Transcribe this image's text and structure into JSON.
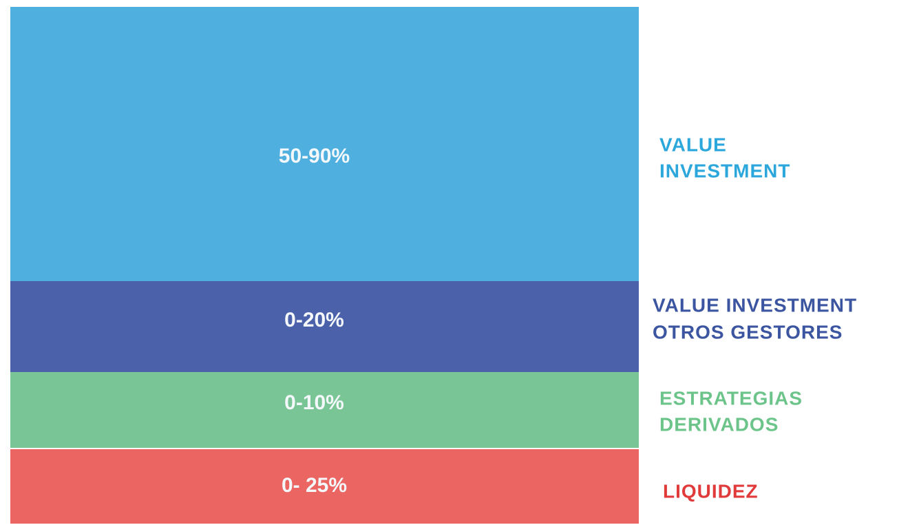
{
  "blocks": [
    {
      "range": "50-90%",
      "label_lines": [
        "VALUE",
        "INVESTMENT"
      ],
      "color": "#4fb0e0",
      "label_color": "#2ba7dc"
    },
    {
      "range": "0-20%",
      "label_lines": [
        "VALUE INVESTMENT",
        "OTROS GESTORES"
      ],
      "color": "#4b62aa",
      "label_color": "#3c55a0"
    },
    {
      "range": "0-10%",
      "label_lines": [
        "ESTRATEGIAS",
        "DERIVADOS"
      ],
      "color": "#79c595",
      "label_color": "#6cc48a"
    },
    {
      "range": "0- 25%",
      "label_lines": [
        "LIQUIDEZ"
      ],
      "color": "#eb6562",
      "label_color": "#e03a3a"
    }
  ]
}
